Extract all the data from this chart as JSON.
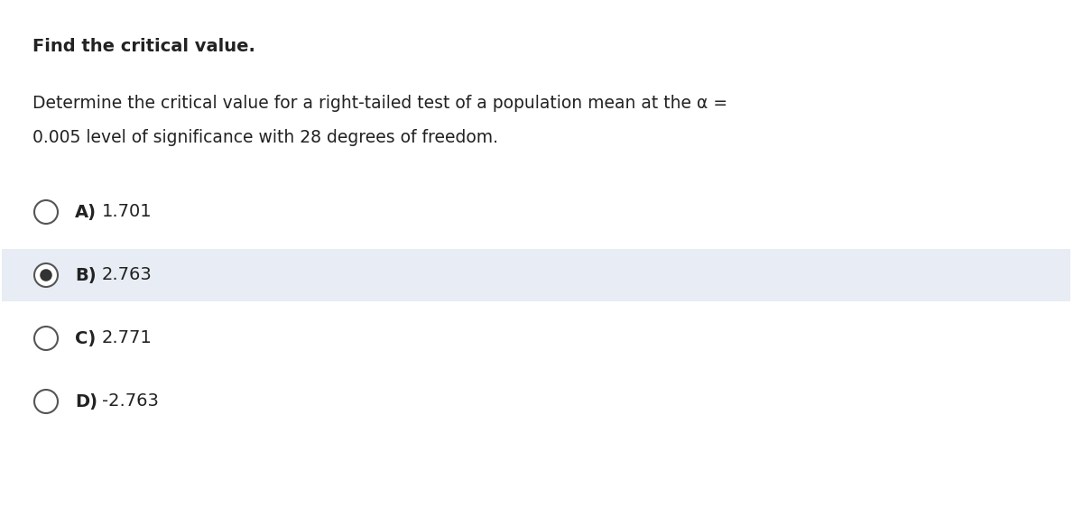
{
  "title": "Find the critical value.",
  "question_line1": "Determine the critical value for a right-tailed test of a population mean at the α =",
  "question_line2": "0.005 level of significance with 28 degrees of freedom.",
  "options": [
    {
      "label": "A)",
      "value": "1.701",
      "selected": false
    },
    {
      "label": "B)",
      "value": "2.763",
      "selected": true
    },
    {
      "label": "C)",
      "value": "2.771",
      "selected": false
    },
    {
      "label": "D)",
      "value": "-2.763",
      "selected": false
    }
  ],
  "bg_color": "#ffffff",
  "highlight_color": "#e8ecf4",
  "text_color": "#222222",
  "circle_edge_color": "#555555",
  "selected_dot_color": "#333333",
  "title_fontsize": 14,
  "question_fontsize": 13.5,
  "option_fontsize": 14
}
